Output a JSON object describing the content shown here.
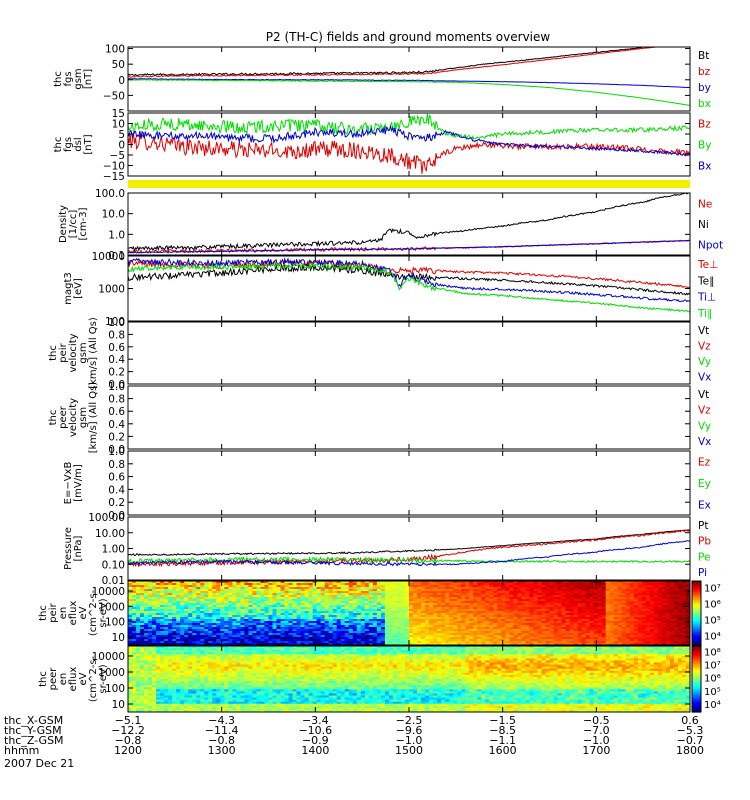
{
  "title": "P2 (TH-C) fields and ground moments overview",
  "colors": {
    "black": "#000000",
    "red": "#dd0000",
    "green": "#00dd00",
    "blue": "#0000cc",
    "yellow": "#f0f000"
  },
  "chart_data": [
    {
      "type": "line",
      "ylabel": [
        "thc",
        "fgs",
        "gsm",
        "[nT]"
      ],
      "yticks": [
        "100",
        "50",
        "0",
        "−50"
      ],
      "ylim": [
        -100,
        105
      ],
      "series": [
        {
          "name": "Bt",
          "color": "black",
          "x": [
            1200,
            1230,
            1260,
            1300,
            1340,
            1380,
            1420,
            1460,
            1490,
            1520,
            1530,
            1550,
            1580,
            1620,
            1660,
            1700,
            1740,
            1770,
            1800
          ],
          "values": [
            15,
            17,
            17,
            18,
            19,
            20,
            21,
            22,
            23,
            25,
            30,
            38,
            50,
            62,
            75,
            88,
            100,
            112,
            125
          ]
        },
        {
          "name": "bz",
          "color": "red",
          "x": [
            1200,
            1240,
            1280,
            1320,
            1360,
            1400,
            1440,
            1480,
            1520,
            1530,
            1560,
            1600,
            1640,
            1680,
            1720,
            1760,
            1800
          ],
          "values": [
            10,
            12,
            13,
            14,
            15,
            16,
            17,
            18,
            20,
            24,
            35,
            48,
            62,
            76,
            90,
            104,
            118
          ]
        },
        {
          "name": "by",
          "color": "blue",
          "x": [
            1200,
            1250,
            1300,
            1350,
            1400,
            1450,
            1500,
            1550,
            1600,
            1650,
            1700,
            1750,
            1800
          ],
          "values": [
            3,
            2,
            1,
            0,
            0,
            -1,
            -2,
            -4,
            -6,
            -9,
            -13,
            -18,
            -25
          ]
        },
        {
          "name": "bx",
          "color": "green",
          "x": [
            1200,
            1250,
            1300,
            1350,
            1400,
            1450,
            1500,
            1550,
            1600,
            1650,
            1700,
            1740,
            1770,
            1800
          ],
          "values": [
            0,
            -1,
            -2,
            -3,
            -4,
            -5,
            -6,
            -8,
            -15,
            -25,
            -40,
            -55,
            -68,
            -82
          ]
        }
      ],
      "noise": [
        3,
        2,
        1,
        1
      ]
    },
    {
      "type": "line",
      "ylabel": [
        "thc",
        "fgs",
        "dsl",
        "[nT]"
      ],
      "yticks": [
        "15",
        "10",
        "5",
        "0",
        "−5",
        "−10",
        "−15"
      ],
      "ylim": [
        -15,
        15
      ],
      "series": [
        {
          "name": "Bz",
          "color": "red",
          "x": [
            1200,
            1230,
            1260,
            1300,
            1340,
            1380,
            1420,
            1450,
            1480,
            1500,
            1520,
            1530,
            1550,
            1580,
            1620,
            1660,
            1700,
            1740,
            1770,
            1800
          ],
          "values": [
            2,
            1,
            -1,
            -2,
            -3,
            -3,
            -2,
            -3,
            -5,
            -8,
            -11,
            -6,
            -2,
            0,
            -1,
            -1,
            -1,
            -2,
            -3,
            -4
          ]
        },
        {
          "name": "By",
          "color": "green",
          "x": [
            1200,
            1240,
            1280,
            1320,
            1360,
            1400,
            1440,
            1480,
            1500,
            1520,
            1540,
            1570,
            1600,
            1650,
            1700,
            1750,
            1800
          ],
          "values": [
            8,
            10,
            9,
            8,
            9,
            9,
            7,
            9,
            11,
            12,
            5,
            3,
            5,
            6,
            7,
            7,
            8
          ]
        },
        {
          "name": "Bx",
          "color": "blue",
          "x": [
            1200,
            1240,
            1280,
            1320,
            1360,
            1400,
            1440,
            1480,
            1500,
            1520,
            1540,
            1570,
            1600,
            1650,
            1700,
            1750,
            1800
          ],
          "values": [
            5,
            4,
            4,
            3,
            3,
            6,
            5,
            7,
            4,
            3,
            6,
            2,
            0,
            -1,
            -2,
            -3,
            -5
          ]
        }
      ],
      "noise": [
        4,
        3,
        2
      ]
    },
    {
      "type": "line",
      "ylabel": [
        "Density",
        "[1/cc]",
        "[cm-3]"
      ],
      "scale": "log",
      "yticks": [
        "100.0",
        "10.0",
        "1.0",
        "0.1"
      ],
      "ylim": [
        0.1,
        100
      ],
      "series": [
        {
          "name": "Ne",
          "color": "red",
          "x": [
            1200,
            1300,
            1400,
            1500,
            1550,
            1600,
            1650,
            1700,
            1750,
            1800
          ],
          "values": [
            0.15,
            0.16,
            0.18,
            0.2,
            0.22,
            0.25,
            0.3,
            0.35,
            0.42,
            0.5
          ]
        },
        {
          "name": "Ni",
          "color": "black",
          "x": [
            1200,
            1300,
            1400,
            1450,
            1470,
            1480,
            1500,
            1510,
            1530,
            1560,
            1600,
            1650,
            1700,
            1750,
            1800
          ],
          "values": [
            0.2,
            0.25,
            0.35,
            0.4,
            0.5,
            1.6,
            1.2,
            0.7,
            1.1,
            1.5,
            2.5,
            5,
            12,
            35,
            100
          ]
        },
        {
          "name": "Npot",
          "color": "blue",
          "x": [
            1200,
            1300,
            1400,
            1500,
            1600,
            1700,
            1800
          ],
          "values": [
            0.13,
            0.15,
            0.18,
            0.2,
            0.25,
            0.35,
            0.5
          ]
        }
      ],
      "noise": [
        0.08,
        0.1,
        0.02
      ]
    },
    {
      "type": "line",
      "ylabel": [
        "magt3",
        "[eV]"
      ],
      "scale": "log",
      "yticks": [
        "10000",
        "1000",
        "100"
      ],
      "ylim": [
        100,
        10000
      ],
      "series": [
        {
          "name": "Te⊥",
          "color": "red",
          "x": [
            1200,
            1250,
            1300,
            1350,
            1400,
            1450,
            1480,
            1500,
            1530,
            1560,
            1600,
            1650,
            1700,
            1750,
            1800
          ],
          "values": [
            6000,
            5500,
            5000,
            5500,
            6000,
            5000,
            3500,
            3500,
            3500,
            3200,
            3000,
            2500,
            2000,
            1500,
            1100
          ]
        },
        {
          "name": "Te∥",
          "color": "black",
          "x": [
            1200,
            1250,
            1300,
            1350,
            1400,
            1450,
            1480,
            1500,
            1530,
            1560,
            1600,
            1650,
            1700,
            1750,
            1800
          ],
          "values": [
            2200,
            2500,
            3000,
            4000,
            4500,
            3500,
            2500,
            2300,
            2200,
            2000,
            1800,
            1500,
            1200,
            900,
            650
          ]
        },
        {
          "name": "Ti⊥",
          "color": "blue",
          "x": [
            1200,
            1250,
            1300,
            1350,
            1400,
            1450,
            1480,
            1490,
            1500,
            1520,
            1540,
            1560,
            1600,
            1650,
            1700,
            1750,
            1800
          ],
          "values": [
            7000,
            6500,
            6000,
            6500,
            6500,
            5500,
            3500,
            1100,
            2500,
            1500,
            1200,
            1000,
            950,
            800,
            650,
            500,
            400
          ]
        },
        {
          "name": "Ti∥",
          "color": "green",
          "x": [
            1200,
            1250,
            1300,
            1350,
            1400,
            1450,
            1480,
            1490,
            1500,
            1520,
            1540,
            1560,
            1600,
            1650,
            1700,
            1750,
            1800
          ],
          "values": [
            4000,
            4500,
            4500,
            5000,
            5000,
            4500,
            3000,
            900,
            2000,
            1100,
            900,
            700,
            600,
            450,
            350,
            250,
            200
          ]
        }
      ],
      "noise": [
        0.1,
        0.1,
        0.1,
        0.08
      ]
    },
    {
      "type": "line",
      "ylabel": [
        "thc",
        "peir",
        "velocity",
        "gsm",
        "[km/s] (All Qs)"
      ],
      "yticks": [
        "1.0",
        "0.8",
        "0.6",
        "0.4",
        "0.2",
        "0.0"
      ],
      "ylim": [
        0,
        1
      ],
      "series": [
        {
          "name": "Vt",
          "color": "black"
        },
        {
          "name": "Vz",
          "color": "red"
        },
        {
          "name": "Vy",
          "color": "green"
        },
        {
          "name": "Vx",
          "color": "blue"
        }
      ]
    },
    {
      "type": "line",
      "ylabel": [
        "thc",
        "peer",
        "velocity",
        "gsm",
        "[km/s] (All Qs)"
      ],
      "yticks": [
        "1.0",
        "0.8",
        "0.6",
        "0.4",
        "0.2",
        "0.0"
      ],
      "ylim": [
        0,
        1
      ],
      "series": [
        {
          "name": "Vt",
          "color": "black"
        },
        {
          "name": "Vz",
          "color": "red"
        },
        {
          "name": "Vy",
          "color": "green"
        },
        {
          "name": "Vx",
          "color": "blue"
        }
      ]
    },
    {
      "type": "line",
      "ylabel": [
        "E=−VxB",
        "[mV/m]"
      ],
      "yticks": [
        "1.0",
        "0.8",
        "0.6",
        "0.4",
        "0.2",
        "0.0"
      ],
      "ylim": [
        0,
        1
      ],
      "series": [
        {
          "name": "Ez",
          "color": "red"
        },
        {
          "name": "Ey",
          "color": "green"
        },
        {
          "name": "Ex",
          "color": "blue"
        }
      ]
    },
    {
      "type": "line",
      "ylabel": [
        "Pressure",
        "[nPa]"
      ],
      "scale": "log",
      "yticks": [
        "100.00",
        "10.00",
        "1.00",
        "0.10",
        "0.01"
      ],
      "ylim": [
        0.01,
        100
      ],
      "series": [
        {
          "name": "Pt",
          "color": "black",
          "x": [
            1200,
            1300,
            1400,
            1450,
            1500,
            1530,
            1560,
            1600,
            1650,
            1700,
            1750,
            1800
          ],
          "values": [
            0.4,
            0.45,
            0.5,
            0.55,
            0.7,
            0.8,
            1.0,
            1.5,
            2.5,
            4,
            8,
            15
          ]
        },
        {
          "name": "Pb",
          "color": "red",
          "x": [
            1200,
            1300,
            1400,
            1500,
            1530,
            1560,
            1600,
            1650,
            1700,
            1750,
            1800
          ],
          "values": [
            0.1,
            0.13,
            0.15,
            0.2,
            0.3,
            0.6,
            1.2,
            2.0,
            3.5,
            7,
            14
          ]
        },
        {
          "name": "Pe",
          "color": "green",
          "x": [
            1200,
            1300,
            1400,
            1500,
            1600,
            1700,
            1800
          ],
          "values": [
            0.15,
            0.2,
            0.2,
            0.18,
            0.15,
            0.15,
            0.15
          ]
        },
        {
          "name": "Pi",
          "color": "blue",
          "x": [
            1200,
            1300,
            1400,
            1500,
            1550,
            1600,
            1650,
            1700,
            1750,
            1800
          ],
          "values": [
            0.12,
            0.15,
            0.12,
            0.1,
            0.1,
            0.15,
            0.3,
            0.6,
            1.2,
            3
          ]
        }
      ],
      "noise": [
        0.05,
        0.15,
        0.15,
        0.1
      ]
    },
    {
      "type": "heatmap",
      "ylabel": [
        "thc",
        "peir",
        "en",
        "eflux",
        "eV",
        "(cm^2-s-",
        "sr-eV)"
      ],
      "yticks": [
        "10000",
        "1000",
        "100",
        "10"
      ],
      "colorbar_ticks": [
        "10⁷",
        "10⁶",
        "10⁵",
        "10⁴"
      ]
    },
    {
      "type": "heatmap",
      "ylabel": [
        "thc",
        "peer",
        "en",
        "eflux",
        "eV",
        "(cm^2-s-",
        "sr-eV)"
      ],
      "yticks": [
        "10000",
        "1000",
        "100",
        "10"
      ],
      "colorbar_ticks": [
        "10⁸",
        "10⁷",
        "10⁶",
        "10⁵",
        "10⁴"
      ]
    }
  ],
  "x_axis": {
    "range": [
      1200,
      1800
    ],
    "ticks": [
      1200,
      1300,
      1400,
      1500,
      1600,
      1700,
      1800
    ],
    "rows": [
      {
        "label": "thc_X-GSM",
        "values": [
          "−5.1",
          "−4.3",
          "−3.4",
          "−2.5",
          "−1.5",
          "−0.5",
          "0.6"
        ]
      },
      {
        "label": "thc_Y-GSM",
        "values": [
          "−12.2",
          "−11.4",
          "−10.6",
          "−9.6",
          "−8.5",
          "−7.0",
          "−5.3"
        ]
      },
      {
        "label": "thc_Z-GSM",
        "values": [
          "−0.8",
          "−0.8",
          "−0.9",
          "−1.0",
          "−1.1",
          "−1.0",
          "−0.7"
        ]
      },
      {
        "label": "hhmm",
        "values": [
          "1200",
          "1300",
          "1400",
          "1500",
          "1600",
          "1700",
          "1800"
        ]
      }
    ],
    "date": "2007 Dec 21"
  }
}
